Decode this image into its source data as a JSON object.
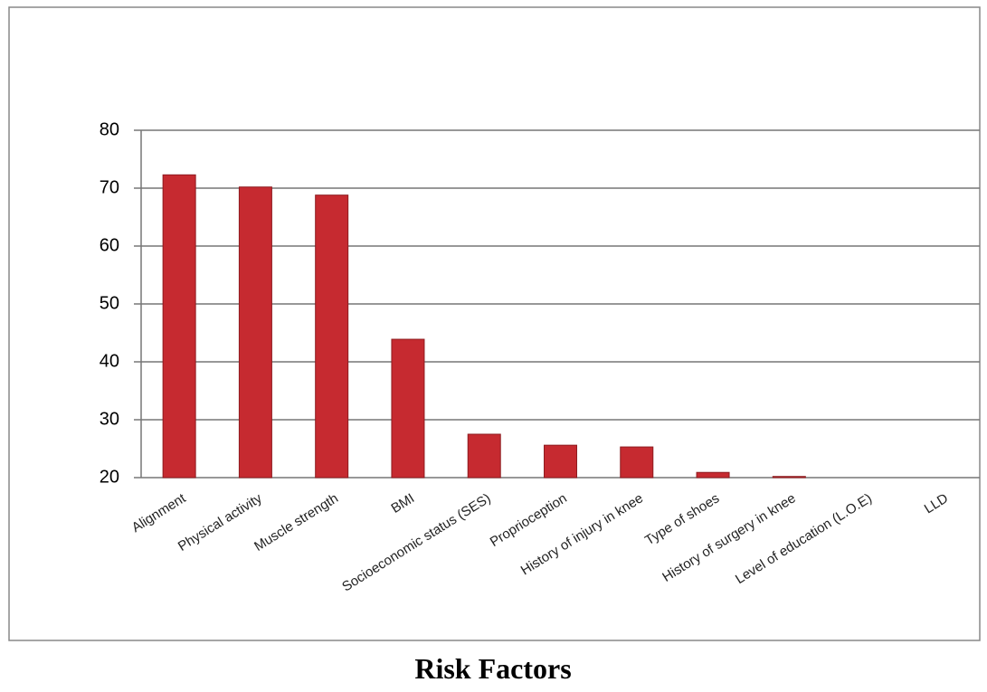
{
  "chart_data": {
    "type": "bar",
    "title": "Risk Factors",
    "categories": [
      "Alignment",
      "Physical activity",
      "Muscle strength",
      "BMI",
      "Socioeconomic status (SES)",
      "Proprioception",
      "History of injury in knee",
      "Type of shoes",
      "History of surgery in knee",
      "Level of education (L.O.E)",
      "LLD"
    ],
    "values": [
      72.3,
      70.2,
      68.8,
      43.9,
      27.5,
      25.6,
      25.3,
      20.9,
      20.2,
      20,
      20
    ],
    "color": "#c62a30",
    "ylim": [
      20,
      80
    ],
    "yticks": [
      20,
      30,
      40,
      50,
      60,
      70,
      80
    ],
    "grid": true
  }
}
